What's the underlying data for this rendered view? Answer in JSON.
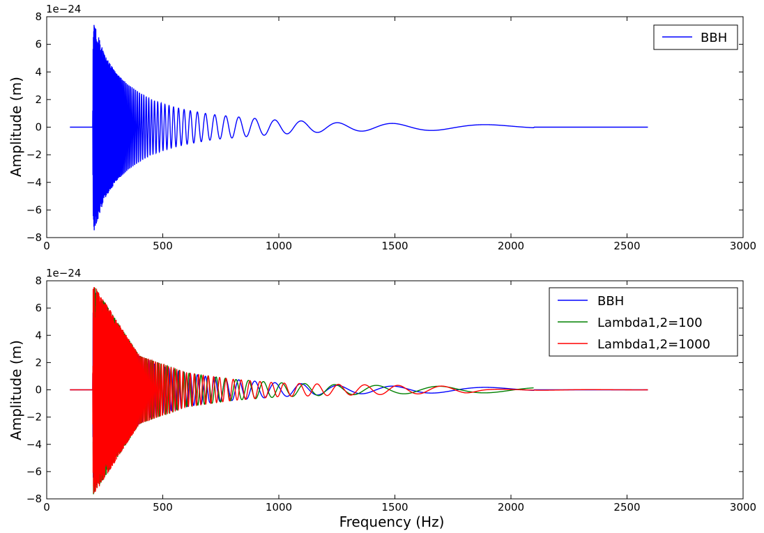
{
  "chart_data": [
    {
      "type": "line",
      "ylabel": "Amplitude (m)",
      "xlabel": "",
      "y_offset_text": "1e−24",
      "xlim": [
        0,
        3000
      ],
      "ylim": [
        -8,
        8
      ],
      "x_ticks": [
        "0",
        "500",
        "1000",
        "1500",
        "2000",
        "2500",
        "3000"
      ],
      "y_ticks": [
        "−8",
        "−6",
        "−4",
        "−2",
        "0",
        "2",
        "4",
        "6",
        "8"
      ],
      "grid": false,
      "legend_position": "top-right",
      "series": [
        {
          "name": "BBH",
          "color": "#0000ff",
          "x": [
            100,
            198,
            200,
            250,
            300,
            350,
            400,
            450,
            500,
            550,
            600,
            650,
            700,
            750,
            800,
            850,
            900,
            950,
            1000,
            1100,
            1150,
            1200,
            1300,
            1400,
            1500,
            1600,
            1700,
            1800,
            1900,
            2000,
            2098,
            2100,
            2200,
            2300,
            2400,
            2500,
            2590
          ],
          "y_envelope": [
            0,
            0,
            7.7,
            5.2,
            3.9,
            3.1,
            2.5,
            2.0,
            1.7,
            1.45,
            1.25,
            1.1,
            0.95,
            0.85,
            0.78,
            0.7,
            0.63,
            0.57,
            0.5,
            0.45,
            0.4,
            0.35,
            0.3,
            0.28,
            0.27,
            0.25,
            0.23,
            0.2,
            0.18,
            0.15,
            0.12,
            0,
            0,
            0,
            0,
            0,
            0
          ],
          "visible_peaks": [
            [
              828,
              0.82
            ],
            [
              1000,
              0.52
            ],
            [
              1160,
              -0.4
            ],
            [
              1500,
              0.28
            ],
            [
              2098,
              0.12
            ]
          ]
        }
      ]
    },
    {
      "type": "line",
      "ylabel": "Amplitude (m)",
      "xlabel": "Frequency (Hz)",
      "y_offset_text": "1e−24",
      "xlim": [
        0,
        3000
      ],
      "ylim": [
        -8,
        8
      ],
      "x_ticks": [
        "0",
        "500",
        "1000",
        "1500",
        "2000",
        "2500",
        "3000"
      ],
      "y_ticks": [
        "−8",
        "−6",
        "−4",
        "−2",
        "0",
        "2",
        "4",
        "6",
        "8"
      ],
      "grid": false,
      "legend_position": "top-right",
      "series": [
        {
          "name": "BBH",
          "color": "#0000ff",
          "x": [
            100,
            198,
            200,
            250,
            300,
            350,
            400,
            450,
            500,
            550,
            600,
            650,
            700,
            750,
            800,
            850,
            900,
            950,
            1000,
            1100,
            1150,
            1200,
            1300,
            1400,
            1500,
            1600,
            1700,
            1800,
            1900,
            2000,
            2098,
            2100,
            2200,
            2300,
            2400,
            2500,
            2590
          ],
          "y_envelope": [
            0,
            0,
            7.7,
            5.2,
            3.9,
            3.1,
            2.5,
            2.0,
            1.7,
            1.45,
            1.25,
            1.1,
            0.95,
            0.85,
            0.78,
            0.7,
            0.63,
            0.57,
            0.5,
            0.45,
            0.4,
            0.35,
            0.3,
            0.28,
            0.27,
            0.25,
            0.23,
            0.2,
            0.18,
            0.15,
            0.12,
            0,
            0,
            0,
            0,
            0,
            0
          ]
        },
        {
          "name": "Lambda1,2=100",
          "color": "#008000",
          "x": [
            200,
            400,
            600,
            800,
            1000,
            1250,
            1500,
            1750,
            2000,
            2098
          ],
          "y_envelope": [
            7.7,
            2.5,
            1.25,
            0.78,
            0.52,
            0.38,
            0.3,
            0.25,
            0.2,
            0.18
          ]
        },
        {
          "name": "Lambda1,2=1000",
          "color": "#ff0000",
          "x": [
            100,
            198,
            200,
            400,
            600,
            800,
            1000,
            1200,
            1400,
            1600,
            1800,
            1900,
            2098,
            2590
          ],
          "y_envelope": [
            0,
            0,
            7.8,
            2.5,
            1.25,
            0.78,
            0.5,
            0.42,
            0.36,
            0.3,
            0.25,
            0.05,
            0.03,
            0
          ]
        }
      ]
    }
  ]
}
